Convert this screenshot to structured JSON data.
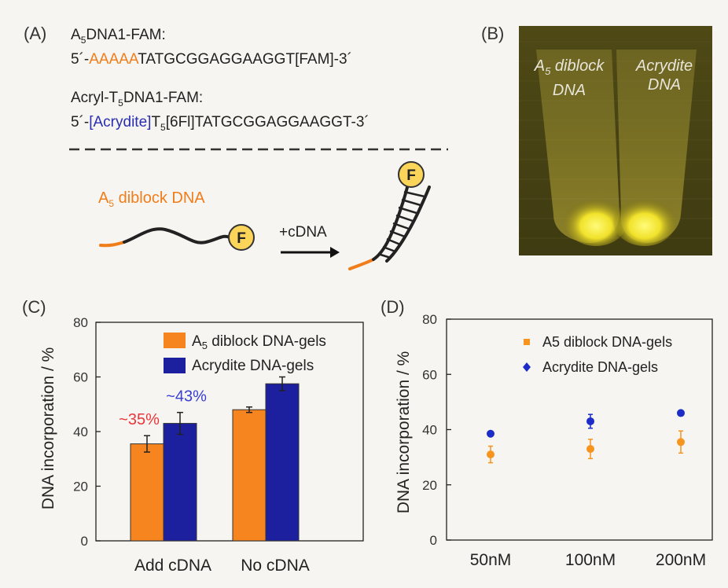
{
  "panel_a": {
    "label": "(A)",
    "seq1_name_pre": "A",
    "seq1_name_sub": "5",
    "seq1_name_post": "DNA1-FAM:",
    "seq1_prefix": "5´-",
    "seq1_orange": "AAAAA",
    "seq1_rest": "TATGCGGAGGAAGGT[FAM]-3´",
    "seq2_name_pre": "Acryl-T",
    "seq2_name_sub": "5",
    "seq2_name_post": "DNA1-FAM:",
    "seq2_prefix": "5´-",
    "seq2_blue": "[Acrydite]",
    "seq2_t": "T",
    "seq2_t_sub": "5",
    "seq2_rest": "[6Fl]TATGCGGAGGAAGGT-3´",
    "diblock_label_pre": "A",
    "diblock_label_sub": "5",
    "diblock_label_post": " diblock DNA",
    "fluor_letter": "F",
    "cdna_label": "+cDNA"
  },
  "panel_b": {
    "label": "(B)",
    "left_label_pre": "A",
    "left_label_sub": "5",
    "left_label_post": " diblock",
    "left_label_line2": "DNA",
    "right_label_line1": "Acrydite",
    "right_label_line2": "DNA"
  },
  "colors": {
    "orange": "#f07d1a",
    "blue": "#1c1f9e",
    "point_blue": "#1d2cc9",
    "annot_red": "#e8373a",
    "annot_blue": "#3a3fd0"
  },
  "chart_data": [
    {
      "panel": "(C)",
      "type": "bar",
      "ylabel": "DNA incorporation / %",
      "ylim": [
        0,
        80
      ],
      "yticks": [
        0,
        20,
        40,
        60,
        80
      ],
      "categories": [
        "Add cDNA",
        "No cDNA"
      ],
      "series": [
        {
          "name": "A5 diblock DNA-gels",
          "legend_pre": "A",
          "legend_sub": "5",
          "legend_post": " diblock DNA-gels",
          "values": [
            35.5,
            48
          ],
          "errors": [
            3,
            1
          ],
          "color": "#f7851f"
        },
        {
          "name": "Acrydite DNA-gels",
          "values": [
            43,
            57.5
          ],
          "errors": [
            4,
            2.5
          ],
          "color": "#1c1f9e"
        }
      ],
      "annotations": [
        {
          "text": "~35%",
          "color": "#e8373a",
          "category": 0,
          "series": 0
        },
        {
          "text": "~43%",
          "color": "#3a3fd0",
          "category": 0,
          "series": 1
        }
      ],
      "legend_position": "top-right"
    },
    {
      "panel": "(D)",
      "type": "scatter",
      "ylabel": "DNA incorporation / %",
      "ylim": [
        0,
        80
      ],
      "yticks": [
        0,
        20,
        40,
        60,
        80
      ],
      "categories": [
        "50nM",
        "100nM",
        "200nM"
      ],
      "series": [
        {
          "name": "A5 diblock DNA-gels",
          "legend_pre": "A5 diblock DNA-gels",
          "values": [
            31,
            33,
            35.5
          ],
          "errors": [
            3,
            3.5,
            4
          ],
          "color": "#f7941d",
          "marker": "square"
        },
        {
          "name": "Acrydite DNA-gels",
          "values": [
            38.5,
            43,
            46
          ],
          "errors": [
            0.6,
            2.5,
            0.6
          ],
          "color": "#1d2cc9",
          "marker": "diamond"
        }
      ],
      "legend_position": "top-right"
    }
  ]
}
